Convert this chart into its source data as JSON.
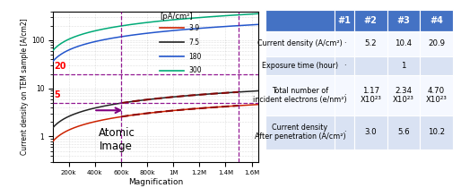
{
  "legend_label": "[pA/cm²]",
  "curves": [
    {
      "label": "3.9",
      "color": "#cc2200",
      "beam_scale": 1.0
    },
    {
      "label": "7.5",
      "color": "#222222",
      "beam_scale": 1.92
    },
    {
      "label": "180",
      "color": "#2255cc",
      "beam_scale": 46.0
    },
    {
      "label": "300",
      "color": "#00aa77",
      "beam_scale": 77.0
    }
  ],
  "dashed_colors": [
    "#aa1100",
    "#550000"
  ],
  "xlabel": "Magnification",
  "ylabel": "Current density on TEM sample [A/cm2]",
  "hlines": [
    {
      "y": 20,
      "label": "20"
    },
    {
      "y": 5,
      "label": "5"
    }
  ],
  "vline_x1": 600000,
  "vline_x2": 1500000,
  "hline_color": "#880088",
  "vline_color": "#880088",
  "annotation_text": "Atomic\nImage",
  "xticks": [
    200000,
    400000,
    600000,
    800000,
    1000000,
    1200000,
    1400000,
    1600000
  ],
  "xtick_labels": [
    "200k",
    "400k",
    "600k",
    "800k",
    "1M",
    "1.2M",
    "1.4M",
    "1.6M"
  ],
  "xmin": 80000,
  "xmax": 1650000,
  "ymin": 0.3,
  "ymax": 400,
  "table_header_color": "#4472c4",
  "table_alt_color": "#d9e2f3",
  "table_white_color": "#f5f8ff",
  "table_cols": [
    "",
    "#1",
    "#2",
    "#3",
    "#4"
  ],
  "table_rows": [
    [
      "Current density (A/cm²)",
      "·",
      "5.2",
      "10.4",
      "20.9"
    ],
    [
      "Exposure time (hour)",
      "·",
      "",
      "1",
      ""
    ],
    [
      "Total number of\nincident electrons (e/nm²)",
      "·",
      "1.17\nX10²³",
      "2.34\nX10²³",
      "4.70\nX10²³"
    ],
    [
      "Current density\nAfter penetration (A/cm²)",
      "·",
      "3.0",
      "5.6",
      "10.2"
    ]
  ]
}
